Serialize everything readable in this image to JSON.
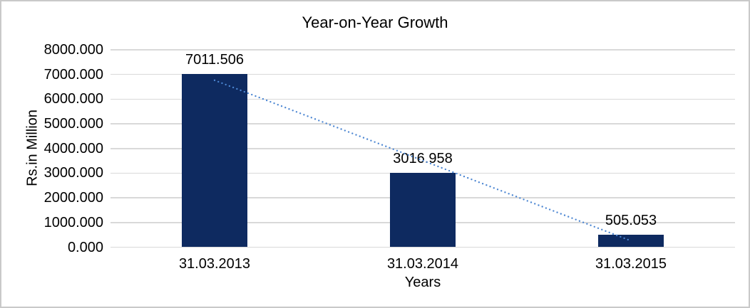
{
  "chart_data": {
    "type": "bar",
    "title": "Year-on-Year Growth",
    "xlabel": "Years",
    "ylabel": "Rs.in Million",
    "categories": [
      "31.03.2013",
      "31.03.2014",
      "31.03.2015"
    ],
    "values": [
      7011.506,
      3016.958,
      505.053
    ],
    "value_labels": [
      "7011.506",
      "3016.958",
      "505.053"
    ],
    "ylim": [
      0,
      8000
    ],
    "ytick_step": 1000,
    "ytick_labels": [
      "0.000",
      "1000.000",
      "2000.000",
      "3000.000",
      "4000.000",
      "5000.000",
      "6000.000",
      "7000.000",
      "8000.000"
    ],
    "grid": true,
    "legend_position": "none",
    "colors": {
      "bar": "#0E2A60",
      "gridline": "#D9D9D9",
      "text": "#000000",
      "frame_border": "#C9C9C9",
      "background": "#FFFFFF"
    },
    "trendline": {
      "type": "linear",
      "style": "dotted",
      "color": "#4C86D2",
      "start_category_index": 0,
      "start_value": 6764,
      "end_category_index": 2,
      "end_value": 258
    }
  }
}
